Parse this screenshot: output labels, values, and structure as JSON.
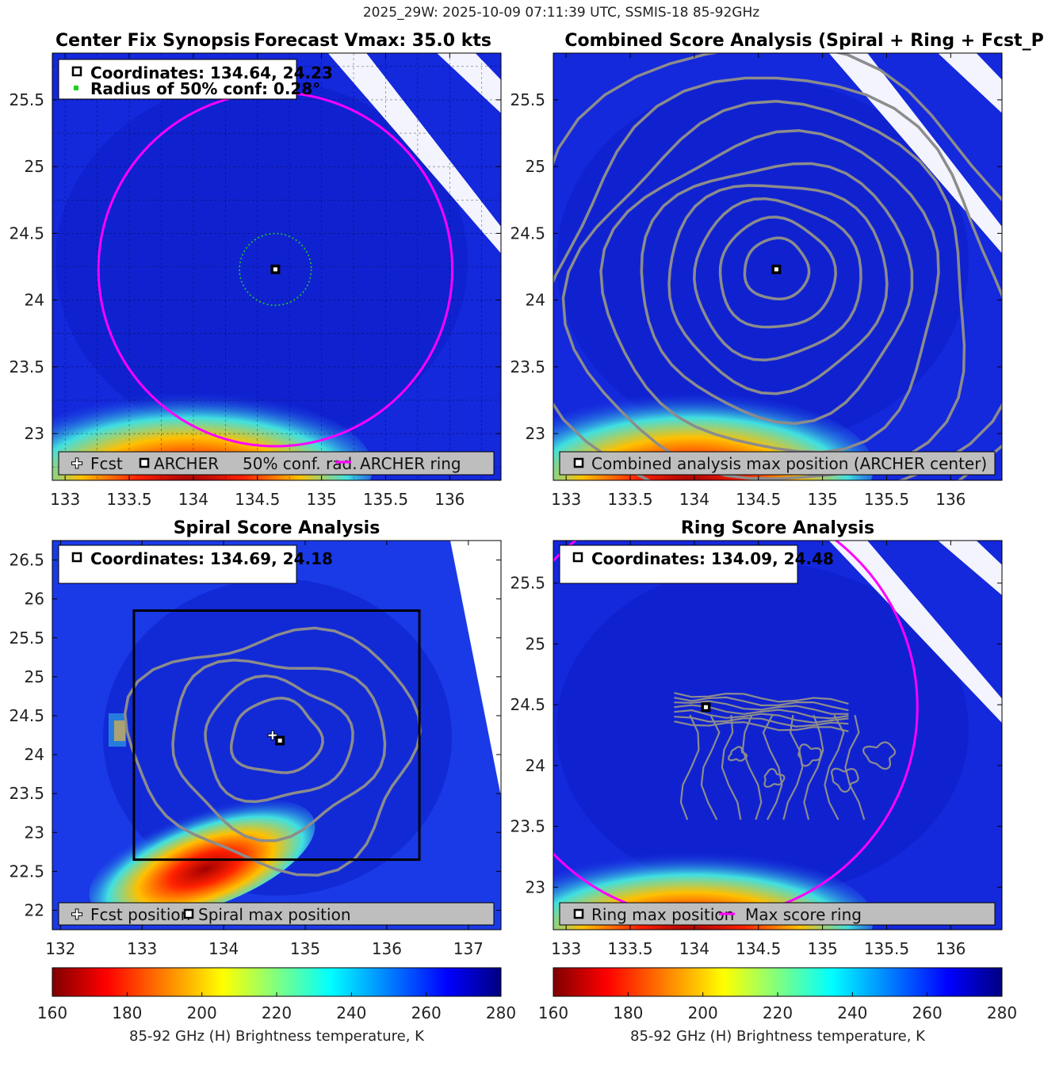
{
  "figure": {
    "suptitle": "2025_29W: 2025-10-09 07:11:39 UTC, SSMIS-18 85-92GHz"
  },
  "colors": {
    "background_deep": "#0a1ad2",
    "background_mid": "#1530e6",
    "magenta_ring": "#ff00ff",
    "contour_gray": "#8c8c8c",
    "conf_green": "#22cc22",
    "legend_gray": "#bebebe",
    "box_black": "#000000"
  },
  "chart_data": [
    {
      "id": "center_fix",
      "type": "heatmap",
      "title_left": "Center Fix Synopsis",
      "title_right": "Forecast Vmax: 35.0 kts",
      "xlim": [
        132.9,
        136.4
      ],
      "ylim": [
        22.65,
        25.85
      ],
      "xticks": [
        "133",
        "133.5",
        "134",
        "134.5",
        "135",
        "135.5",
        "136"
      ],
      "xtick_values": [
        133,
        133.5,
        134,
        134.5,
        135,
        135.5,
        136
      ],
      "yticks": [
        "23",
        "23.5",
        "24",
        "24.5",
        "25",
        "25.5"
      ],
      "ytick_values": [
        23,
        23.5,
        24,
        24.5,
        25,
        25.5
      ],
      "grid": true,
      "info_lines": [
        "Coordinates: 134.64, 24.23",
        "Radius of 50% conf: 0.28°"
      ],
      "center": [
        134.64,
        24.23
      ],
      "ring_radius_deg": 1.38,
      "conf_radius_deg": 0.28,
      "legend": [
        "Fcst",
        "ARCHER",
        "50% conf. rad.",
        "ARCHER ring"
      ],
      "cold_patch": {
        "x": [
          133.1,
          134.6
        ],
        "y": [
          22.65,
          23.1
        ],
        "min_k": 170
      }
    },
    {
      "id": "combined",
      "type": "heatmap",
      "title": "Combined Score Analysis (Spiral + Ring + Fcst_Pe",
      "xlim": [
        132.9,
        136.4
      ],
      "ylim": [
        22.65,
        25.85
      ],
      "xticks": [
        "133",
        "133.5",
        "134",
        "134.5",
        "135",
        "135.5",
        "136"
      ],
      "xtick_values": [
        133,
        133.5,
        134,
        134.5,
        135,
        135.5,
        136
      ],
      "yticks": [
        "23",
        "23.5",
        "24",
        "24.5",
        "25",
        "25.5"
      ],
      "ytick_values": [
        23,
        23.5,
        24,
        24.5,
        25,
        25.5
      ],
      "grid": false,
      "center": [
        134.64,
        24.23
      ],
      "contour_radii_deg": [
        0.25,
        0.45,
        0.65,
        0.85,
        1.05,
        1.3,
        1.55,
        1.8,
        2.1
      ],
      "legend": [
        "Combined analysis max position (ARCHER center)"
      ],
      "cold_patch": {
        "x": [
          133.1,
          134.6
        ],
        "y": [
          22.65,
          23.1
        ],
        "min_k": 170
      }
    },
    {
      "id": "spiral",
      "type": "heatmap",
      "title": "Spiral Score Analysis",
      "xlim": [
        131.9,
        137.4
      ],
      "ylim": [
        21.75,
        26.75
      ],
      "xticks": [
        "132",
        "133",
        "134",
        "135",
        "136",
        "137"
      ],
      "xtick_values": [
        132,
        133,
        134,
        135,
        136,
        137
      ],
      "yticks": [
        "22",
        "22.5",
        "23",
        "23.5",
        "24",
        "24.5",
        "25",
        "25.5",
        "26",
        "26.5"
      ],
      "ytick_values": [
        22,
        22.5,
        23,
        23.5,
        24,
        24.5,
        25,
        25.5,
        26,
        26.5
      ],
      "grid": false,
      "info_lines": [
        "Coordinates: 134.69, 24.18"
      ],
      "fcst": [
        134.6,
        24.25
      ],
      "center": [
        134.69,
        24.18
      ],
      "box": {
        "x": [
          132.9,
          136.4
        ],
        "y": [
          22.65,
          25.85
        ]
      },
      "contour_radii_deg": [
        0.55,
        0.9,
        1.3,
        1.75
      ],
      "legend": [
        "Fcst position",
        "Spiral max position"
      ],
      "cold_patch": {
        "x": [
          132.8,
          134.8
        ],
        "y": [
          22.3,
          23.1
        ],
        "min_k": 165
      }
    },
    {
      "id": "ring",
      "type": "heatmap",
      "title": "Ring Score Analysis",
      "xlim": [
        132.9,
        136.4
      ],
      "ylim": [
        22.65,
        25.85
      ],
      "xticks": [
        "133",
        "133.5",
        "134",
        "134.5",
        "135",
        "135.5",
        "136"
      ],
      "xtick_values": [
        133,
        133.5,
        134,
        134.5,
        135,
        135.5,
        136
      ],
      "yticks": [
        "23",
        "23.5",
        "24",
        "24.5",
        "25",
        "25.5"
      ],
      "ytick_values": [
        23,
        23.5,
        24,
        24.5,
        25,
        25.5
      ],
      "grid": false,
      "info_lines": [
        "Coordinates: 134.09, 24.48"
      ],
      "center": [
        134.09,
        24.48
      ],
      "ring_radius_deg": 1.65,
      "legend": [
        "Ring max position",
        "Max score ring"
      ],
      "cold_patch": {
        "x": [
          133.1,
          134.6
        ],
        "y": [
          22.65,
          23.1
        ],
        "min_k": 170
      }
    }
  ],
  "colorbars": [
    {
      "range": [
        160,
        280
      ],
      "ticks": [
        "160",
        "180",
        "200",
        "220",
        "240",
        "260",
        "280"
      ],
      "label": "85-92 GHz (H) Brightness temperature, K"
    },
    {
      "range": [
        160,
        280
      ],
      "ticks": [
        "160",
        "180",
        "200",
        "220",
        "240",
        "260",
        "280"
      ],
      "label": "85-92 GHz (H) Brightness temperature, K"
    }
  ]
}
